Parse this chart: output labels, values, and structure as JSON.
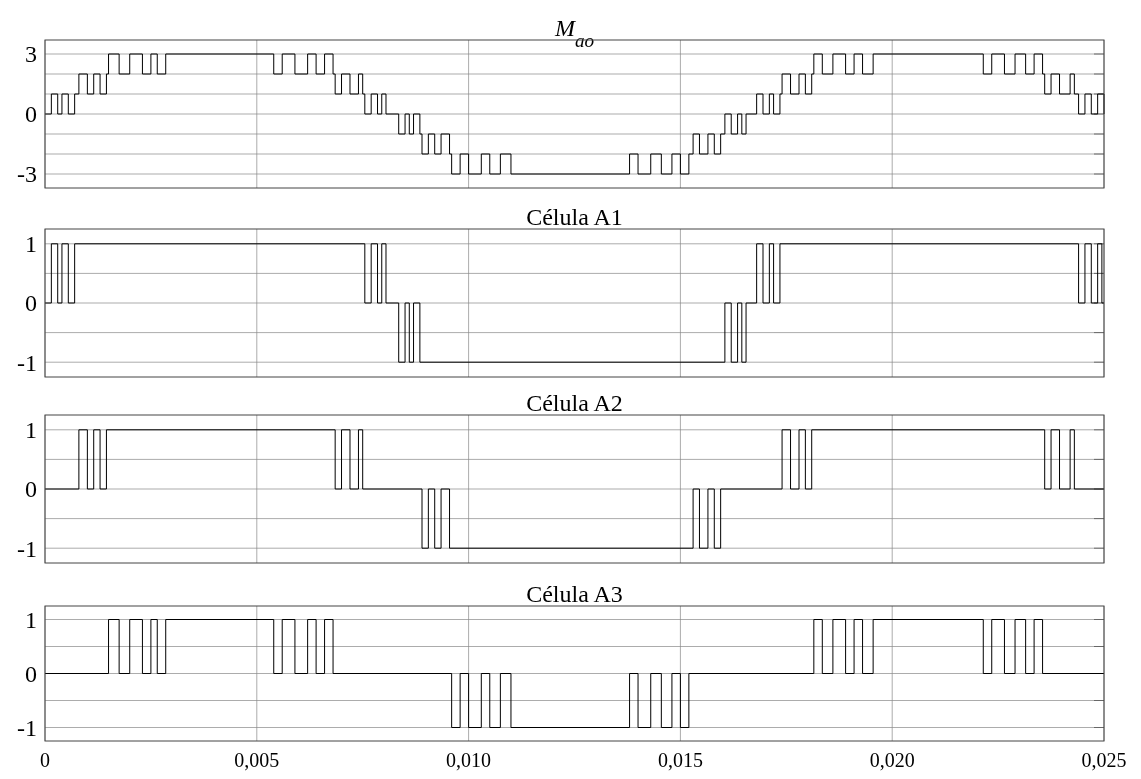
{
  "chart_data": [
    {
      "type": "step",
      "title": "M$_{ao}$",
      "color": "#000000",
      "grid": true,
      "tick_labels": "y",
      "xlim": [
        0,
        0.025
      ],
      "xticks": [
        {
          "value": 0,
          "label": null
        },
        {
          "value": 0.005,
          "label": null
        },
        {
          "value": 0.01,
          "label": null
        },
        {
          "value": 0.015,
          "label": null
        },
        {
          "value": 0.02,
          "label": null
        },
        {
          "value": 0.025,
          "label": null
        }
      ],
      "ylim": [
        -3.7,
        3.7
      ],
      "yticks": [
        -3,
        {
          "value": -2,
          "label": null
        },
        {
          "value": -1,
          "label": null
        },
        0,
        {
          "value": 1,
          "label": null
        },
        {
          "value": 2,
          "label": null
        },
        3
      ],
      "x": [
        0,
        0.00015,
        0.0003,
        0.0004,
        0.00055,
        0.0007,
        0.0008,
        0.001,
        0.00115,
        0.0013,
        0.00145,
        0.0015,
        0.00175,
        0.002,
        0.0023,
        0.0025,
        0.00265,
        0.00285,
        0.0054,
        0.0056,
        0.0059,
        0.0062,
        0.0064,
        0.0066,
        0.0068,
        0.00685,
        0.007,
        0.0072,
        0.0074,
        0.0075,
        0.00755,
        0.0077,
        0.00785,
        0.00795,
        0.00805,
        0.00835,
        0.0085,
        0.0086,
        0.0087,
        0.00885,
        0.0089,
        0.00905,
        0.0092,
        0.00935,
        0.00955,
        0.0096,
        0.0098,
        0.01,
        0.0103,
        0.0105,
        0.01075,
        0.011,
        0.0138,
        0.014,
        0.0143,
        0.01455,
        0.0148,
        0.015,
        0.0152,
        0.0153,
        0.01545,
        0.01565,
        0.0158,
        0.01595,
        0.01605,
        0.0162,
        0.01635,
        0.01645,
        0.01655,
        0.0168,
        0.01695,
        0.0171,
        0.0172,
        0.01735,
        0.0174,
        0.0176,
        0.0178,
        0.01795,
        0.0181,
        0.01815,
        0.01835,
        0.0186,
        0.0189,
        0.0191,
        0.0193,
        0.01955,
        0.02215,
        0.02235,
        0.02265,
        0.0229,
        0.02315,
        0.02335,
        0.02355,
        0.0236,
        0.02375,
        0.02395,
        0.0242,
        0.0243,
        0.0244,
        0.02455,
        0.0247,
        0.02485,
        0.025
      ],
      "values": [
        0,
        1,
        0,
        1,
        0,
        1,
        2,
        1,
        2,
        1,
        2,
        3,
        2,
        3,
        2,
        3,
        2,
        3,
        2,
        3,
        2,
        3,
        2,
        3,
        2,
        1,
        2,
        1,
        2,
        1,
        0,
        1,
        0,
        1,
        0,
        -1,
        0,
        -1,
        0,
        -1,
        -2,
        -1,
        -2,
        -1,
        -2,
        -3,
        -2,
        -3,
        -2,
        -3,
        -2,
        -3,
        -2,
        -3,
        -2,
        -3,
        -2,
        -3,
        -2,
        -1,
        -2,
        -1,
        -2,
        -1,
        0,
        -1,
        0,
        -1,
        0,
        1,
        0,
        1,
        0,
        1,
        2,
        1,
        2,
        1,
        2,
        3,
        2,
        3,
        2,
        3,
        2,
        3,
        2,
        3,
        2,
        3,
        2,
        3,
        2,
        1,
        2,
        1,
        2,
        1,
        0,
        1,
        0,
        1,
        0
      ]
    },
    {
      "type": "step",
      "title": "Célula A1",
      "color": "#000000",
      "grid": true,
      "tick_labels": "y",
      "xlim": [
        0,
        0.025
      ],
      "xticks": [
        {
          "value": 0,
          "label": null
        },
        {
          "value": 0.005,
          "label": null
        },
        {
          "value": 0.01,
          "label": null
        },
        {
          "value": 0.015,
          "label": null
        },
        {
          "value": 0.02,
          "label": null
        },
        {
          "value": 0.025,
          "label": null
        }
      ],
      "ylim": [
        -1.25,
        1.25
      ],
      "yticks": [
        -1,
        {
          "value": -0.5,
          "label": null
        },
        0,
        {
          "value": 0.5,
          "label": null
        },
        1
      ],
      "x": [
        0,
        0.00015,
        0.0003,
        0.0004,
        0.00055,
        0.0007,
        0.00755,
        0.0077,
        0.00785,
        0.00795,
        0.00805,
        0.00835,
        0.0085,
        0.0086,
        0.0087,
        0.00885,
        0.01605,
        0.0162,
        0.01635,
        0.01645,
        0.01655,
        0.0168,
        0.01695,
        0.0171,
        0.0172,
        0.01735,
        0.0244,
        0.02455,
        0.0247,
        0.02485,
        0.02495,
        0.025
      ],
      "values": [
        0,
        1,
        0,
        1,
        0,
        1,
        0,
        1,
        0,
        1,
        0,
        -1,
        0,
        -1,
        0,
        -1,
        0,
        -1,
        0,
        -1,
        0,
        1,
        0,
        1,
        0,
        1,
        0,
        1,
        0,
        1,
        0,
        0
      ]
    },
    {
      "type": "step",
      "title": "Célula A2",
      "color": "#000000",
      "grid": true,
      "tick_labels": "y",
      "xlim": [
        0,
        0.025
      ],
      "xticks": [
        {
          "value": 0,
          "label": null
        },
        {
          "value": 0.005,
          "label": null
        },
        {
          "value": 0.01,
          "label": null
        },
        {
          "value": 0.015,
          "label": null
        },
        {
          "value": 0.02,
          "label": null
        },
        {
          "value": 0.025,
          "label": null
        }
      ],
      "ylim": [
        -1.25,
        1.25
      ],
      "yticks": [
        -1,
        {
          "value": -0.5,
          "label": null
        },
        0,
        {
          "value": 0.5,
          "label": null
        },
        1
      ],
      "x": [
        0,
        0.0008,
        0.001,
        0.00115,
        0.0013,
        0.00145,
        0.00685,
        0.007,
        0.0072,
        0.0074,
        0.0075,
        0.0089,
        0.00905,
        0.0092,
        0.00935,
        0.00955,
        0.0153,
        0.01545,
        0.01565,
        0.0158,
        0.01595,
        0.0174,
        0.0176,
        0.0178,
        0.01795,
        0.0181,
        0.0236,
        0.02375,
        0.02395,
        0.0242,
        0.0243,
        0.025
      ],
      "values": [
        0,
        1,
        0,
        1,
        0,
        1,
        0,
        1,
        0,
        1,
        0,
        -1,
        0,
        -1,
        0,
        -1,
        0,
        -1,
        0,
        -1,
        0,
        1,
        0,
        1,
        0,
        1,
        0,
        1,
        0,
        1,
        0,
        0
      ]
    },
    {
      "type": "step",
      "title": "Célula A3",
      "color": "#000000",
      "grid": true,
      "xlim": [
        0,
        0.025
      ],
      "xticks": [
        {
          "value": 0,
          "label": "0"
        },
        {
          "value": 0.005,
          "label": "0,005"
        },
        {
          "value": 0.01,
          "label": "0,010"
        },
        {
          "value": 0.015,
          "label": "0,015"
        },
        {
          "value": 0.02,
          "label": "0,020"
        },
        {
          "value": 0.025,
          "label": "0,025"
        }
      ],
      "ylim": [
        -1.25,
        1.25
      ],
      "yticks": [
        -1,
        {
          "value": -0.5,
          "label": null
        },
        0,
        {
          "value": 0.5,
          "label": null
        },
        1
      ],
      "x": [
        0,
        0.0015,
        0.00175,
        0.002,
        0.0023,
        0.0025,
        0.00265,
        0.00285,
        0.0054,
        0.0056,
        0.0059,
        0.0062,
        0.0064,
        0.0066,
        0.0068,
        0.0096,
        0.0098,
        0.01,
        0.0103,
        0.0105,
        0.01075,
        0.011,
        0.0138,
        0.014,
        0.0143,
        0.01455,
        0.0148,
        0.015,
        0.0152,
        0.01815,
        0.01835,
        0.0186,
        0.0189,
        0.0191,
        0.0193,
        0.01955,
        0.02215,
        0.02235,
        0.02265,
        0.0229,
        0.02315,
        0.02335,
        0.02355,
        0.025
      ],
      "values": [
        0,
        1,
        0,
        1,
        0,
        1,
        0,
        1,
        0,
        1,
        0,
        1,
        0,
        1,
        0,
        -1,
        0,
        -1,
        0,
        -1,
        0,
        -1,
        0,
        -1,
        0,
        -1,
        0,
        -1,
        0,
        1,
        0,
        1,
        0,
        1,
        0,
        1,
        0,
        1,
        0,
        1,
        0,
        1,
        0,
        0
      ]
    }
  ]
}
